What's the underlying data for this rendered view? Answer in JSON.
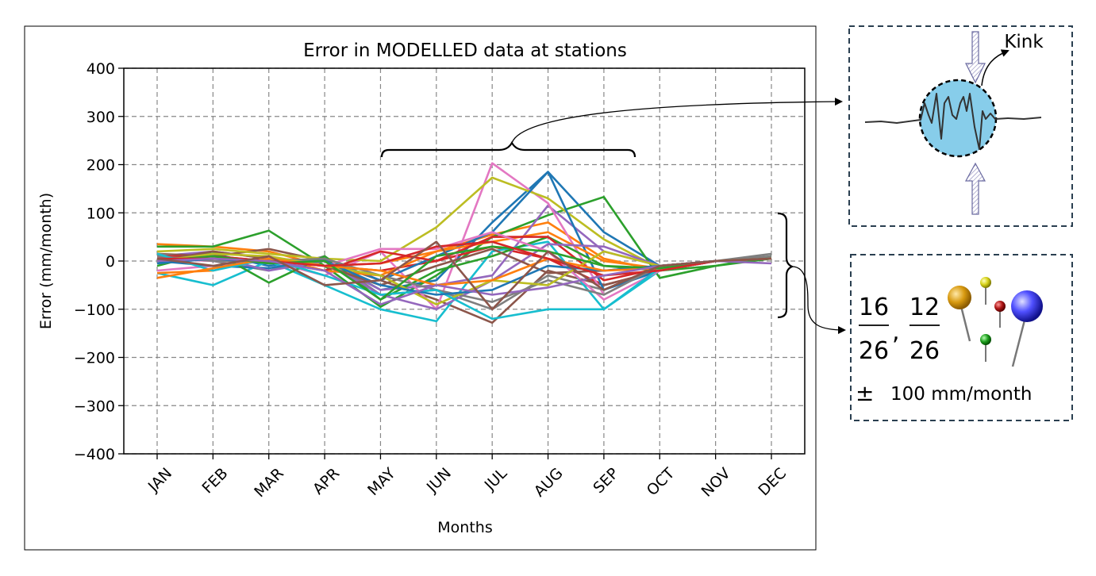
{
  "chart_data": {
    "type": "line",
    "title": "Error in MODELLED data at stations",
    "xlabel": "Months",
    "ylabel": "Error (mm/month)",
    "categories": [
      "JAN",
      "FEB",
      "MAR",
      "APR",
      "MAY",
      "JUN",
      "JUL",
      "AUG",
      "SEP",
      "OCT",
      "NOV",
      "DEC"
    ],
    "ylim": [
      -400,
      400
    ],
    "yticks": [
      400,
      300,
      200,
      100,
      0,
      -100,
      -200,
      -300,
      -400
    ],
    "ytick_labels": [
      "400",
      "300",
      "200",
      "100",
      "0",
      "−100",
      "−200",
      "−300",
      "−400"
    ],
    "grid": true,
    "series": [
      {
        "color": "#1f77b4",
        "values": [
          5,
          15,
          -10,
          5,
          -60,
          -40,
          80,
          185,
          60,
          -10,
          0,
          5
        ]
      },
      {
        "color": "#ff7f0e",
        "values": [
          35,
          30,
          20,
          -10,
          -5,
          20,
          55,
          80,
          5,
          -20,
          0,
          5
        ]
      },
      {
        "color": "#2ca02c",
        "values": [
          30,
          30,
          63,
          -10,
          -95,
          -30,
          50,
          95,
          133,
          -35,
          -10,
          10
        ]
      },
      {
        "color": "#d62728",
        "values": [
          5,
          10,
          0,
          -10,
          -20,
          0,
          30,
          5,
          -50,
          -20,
          0,
          5
        ]
      },
      {
        "color": "#9467bd",
        "values": [
          10,
          20,
          5,
          0,
          -60,
          -50,
          -30,
          115,
          20,
          -10,
          0,
          5
        ]
      },
      {
        "color": "#8c564b",
        "values": [
          15,
          10,
          25,
          0,
          -40,
          -80,
          -128,
          -20,
          -50,
          -20,
          0,
          5
        ]
      },
      {
        "color": "#e377c2",
        "values": [
          -20,
          -10,
          0,
          -30,
          20,
          -100,
          203,
          120,
          -70,
          -10,
          0,
          5
        ]
      },
      {
        "color": "#7f7f7f",
        "values": [
          15,
          0,
          -20,
          10,
          -70,
          -60,
          -100,
          -30,
          -60,
          -10,
          0,
          15
        ]
      },
      {
        "color": "#bcbd22",
        "values": [
          20,
          25,
          15,
          5,
          0,
          70,
          173,
          130,
          45,
          -15,
          0,
          5
        ]
      },
      {
        "color": "#17becf",
        "values": [
          -25,
          -50,
          0,
          -50,
          -100,
          -125,
          20,
          40,
          -100,
          -20,
          0,
          5
        ]
      },
      {
        "color": "#1f77b4",
        "values": [
          0,
          -10,
          -15,
          5,
          -40,
          10,
          60,
          185,
          -60,
          -20,
          0,
          5
        ]
      },
      {
        "color": "#ff7f0e",
        "values": [
          -25,
          -20,
          10,
          -20,
          -30,
          20,
          40,
          60,
          0,
          -15,
          0,
          5
        ]
      },
      {
        "color": "#2ca02c",
        "values": [
          -10,
          20,
          -45,
          10,
          -80,
          -20,
          10,
          50,
          -10,
          -20,
          -10,
          5
        ]
      },
      {
        "color": "#d62728",
        "values": [
          10,
          10,
          0,
          -20,
          20,
          0,
          50,
          50,
          -40,
          -15,
          0,
          5
        ]
      },
      {
        "color": "#9467bd",
        "values": [
          0,
          10,
          -20,
          0,
          -70,
          -100,
          -40,
          35,
          30,
          -10,
          0,
          5
        ]
      },
      {
        "color": "#8c564b",
        "values": [
          0,
          20,
          5,
          -10,
          -50,
          -10,
          25,
          -25,
          -20,
          -10,
          0,
          5
        ]
      },
      {
        "color": "#e377c2",
        "values": [
          5,
          0,
          0,
          -10,
          25,
          25,
          60,
          20,
          -80,
          -20,
          0,
          5
        ]
      },
      {
        "color": "#7f7f7f",
        "values": [
          10,
          0,
          0,
          5,
          -30,
          -60,
          -85,
          -40,
          -70,
          -10,
          0,
          10
        ]
      },
      {
        "color": "#bcbd22",
        "values": [
          0,
          15,
          10,
          -10,
          -30,
          -90,
          -40,
          -50,
          20,
          -10,
          0,
          5
        ]
      },
      {
        "color": "#17becf",
        "values": [
          15,
          -20,
          5,
          -30,
          -70,
          -60,
          -120,
          -100,
          -100,
          -15,
          0,
          5
        ]
      },
      {
        "color": "#1f77b4",
        "values": [
          -5,
          5,
          -5,
          0,
          -50,
          -70,
          -60,
          -10,
          -20,
          -10,
          0,
          5
        ]
      },
      {
        "color": "#ff7f0e",
        "values": [
          -35,
          -15,
          5,
          -10,
          -20,
          -50,
          -40,
          5,
          -20,
          -15,
          0,
          5
        ]
      },
      {
        "color": "#2ca02c",
        "values": [
          0,
          10,
          -5,
          0,
          -80,
          10,
          30,
          20,
          -10,
          -15,
          0,
          5
        ]
      },
      {
        "color": "#d62728",
        "values": [
          5,
          5,
          0,
          -10,
          -5,
          30,
          40,
          5,
          -30,
          -20,
          0,
          5
        ]
      },
      {
        "color": "#9467bd",
        "values": [
          0,
          5,
          0,
          -20,
          -90,
          -50,
          -70,
          -55,
          -30,
          -10,
          0,
          -5
        ]
      },
      {
        "color": "#8c564b",
        "values": [
          5,
          -10,
          10,
          -50,
          -40,
          40,
          -100,
          20,
          -60,
          -10,
          0,
          5
        ]
      }
    ]
  },
  "annotations": {
    "kink_label": "Kink",
    "fraction1": {
      "num": "16",
      "den": "26"
    },
    "comma": ",",
    "fraction2": {
      "num": "12",
      "den": "26"
    },
    "pm_symbol": "±",
    "range_label": "100 mm/month",
    "panel_border_color": "#2a3f50",
    "circle_fill": "#87cdea"
  }
}
